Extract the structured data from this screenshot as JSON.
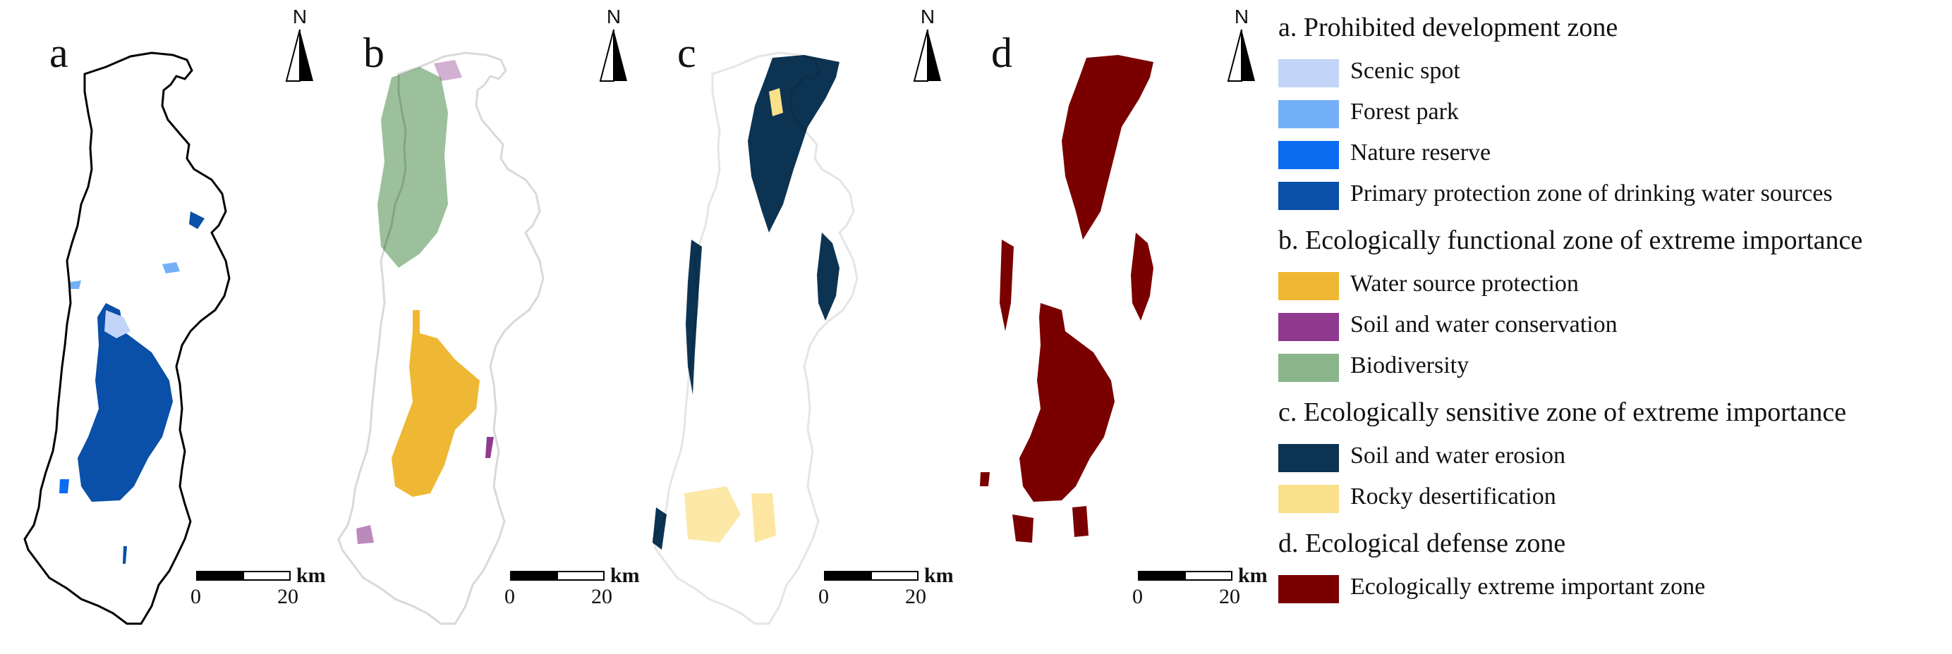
{
  "panels": [
    {
      "letter": "a",
      "north": "N",
      "scale": {
        "unit": "km",
        "ticks": [
          "0",
          "20"
        ]
      }
    },
    {
      "letter": "b",
      "north": "N",
      "scale": {
        "unit": "km",
        "ticks": [
          "0",
          "20"
        ]
      }
    },
    {
      "letter": "c",
      "north": "N",
      "scale": {
        "unit": "km",
        "ticks": [
          "0",
          "20"
        ]
      }
    },
    {
      "letter": "d",
      "north": "N",
      "scale": {
        "unit": "km",
        "ticks": [
          "0",
          "20"
        ]
      }
    }
  ],
  "legend": {
    "sections": [
      {
        "title": "a. Prohibited development zone",
        "items": [
          {
            "label": "Scenic spot",
            "color": "#c2d4f7"
          },
          {
            "label": "Forest park",
            "color": "#74b0f7"
          },
          {
            "label": "Nature reserve",
            "color": "#0a6cf0"
          },
          {
            "label": "Primary protection zone of drinking water sources",
            "color": "#0a4fa8"
          }
        ]
      },
      {
        "title": "b. Ecologically functional zone of extreme importance",
        "items": [
          {
            "label": "Water source protection",
            "color": "#efb834"
          },
          {
            "label": "Soil and water conservation",
            "color": "#8f3a8f"
          },
          {
            "label": "Biodiversity",
            "color": "#8ab58a"
          }
        ]
      },
      {
        "title": "c. Ecologically sensitive zone of extreme importance",
        "items": [
          {
            "label": "Soil and water erosion",
            "color": "#0c3352"
          },
          {
            "label": "Rocky desertification",
            "color": "#fbe08a"
          }
        ]
      },
      {
        "title": "d. Ecological defense zone",
        "items": [
          {
            "label": "Ecologically extreme important zone",
            "color": "#7a0000"
          }
        ]
      }
    ]
  }
}
